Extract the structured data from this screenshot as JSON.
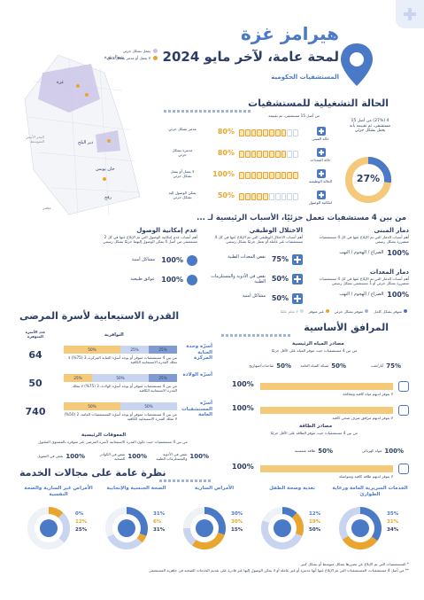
{
  "header": {
    "title": "هيرامز غزة",
    "subtitle": "لمحة عامة، لآخر مايو 2024",
    "facility_type": "المستشفيات الحكومية",
    "legend": [
      {
        "label": "يعمل بشكل جزئي",
        "color": "#c9c3e6"
      },
      {
        "label": "لا يعمل أو مدمر بشكل كامل",
        "color": "#e9a52e"
      }
    ]
  },
  "map": {
    "labels": [
      "غزة",
      "دير البلح",
      "خان يونس",
      "رفح",
      "شمال غزة",
      "مصر",
      "البحر الأبيض المتوسط"
    ]
  },
  "operational": {
    "title": "الحالة التشغيلية للمستشفيات",
    "intro": "من أصل 15 مستشفى، تم تقييمه",
    "ring_value": "27%",
    "ring_fraction": 0.27,
    "ring_caption": "4 (27%) من أصل 15 مستشفى، تم تقييمه بأنه يعمل بشكل جزئي",
    "rows": [
      {
        "label": "حالة المبنى",
        "pct": "80%",
        "fraction": 0.8,
        "desc": "مدمر بشكل جزئي"
      },
      {
        "label": "حالة المعدات",
        "pct": "80%",
        "fraction": 0.8,
        "desc": "مدمرة بشكل جزئي"
      },
      {
        "label": "الحالة الوظيفية",
        "pct": "100%",
        "fraction": 1.0,
        "desc": "لا يعمل أو يعمل بشكل جزئي"
      },
      {
        "label": "امكانية الوصول",
        "pct": "50%",
        "fraction": 0.5,
        "desc": "يمكن الوصول إليه بشكل جزئي"
      }
    ]
  },
  "reasons": {
    "title": "من بين 4 مستشفيات تعمل جزئيًا، الأسباب الرئيسية لـ ...",
    "cards": [
      {
        "title": "دمار المبنى",
        "desc": "أهم أسباب الدمار التي تم الإبلاغ عنها في كل 4 مستشفيات متضررة بشكل رسمي",
        "pct": "100%",
        "item": "الصراع / الهجوم / النهب"
      },
      {
        "title": "الاختلال الوظيفي",
        "desc": "أهم أسباب الاختلال الوظيفي التي تم الإبلاغ عنها في كل 4 مستشفيات غير عاملة أو تعمل جزئيًا بشكل رسمي",
        "items": [
          {
            "pct": "75%",
            "label": "نقص المعدات الطبية"
          },
          {
            "pct": "50%",
            "label": "نقص في الأدوية والمستلزمات الطبية"
          },
          {
            "pct": "50%",
            "label": "مشاكل أمنية"
          }
        ]
      },
      {
        "title": "عدم إمكانية الوصول",
        "desc": "أهم أسباب عدم إمكانية الوصول التي تم الإبلاغ عنها في كل 2 مستشفى من أصل 4 يمكن الوصول إليهما جزئيًا بشكل رسمي",
        "items": [
          {
            "pct": "100%",
            "label": "مشاكل أمنية"
          },
          {
            "pct": "100%",
            "label": "عوائق طبيعية"
          }
        ]
      },
      {
        "title": "دمار المعدات",
        "desc": "أهم أسباب الدمار التي تم الإبلاغ عنها في كل 4 مستشفيات متضررة بشكل جزئي أو 1 مستشفى بشكل رسمي",
        "pct": "100%",
        "item": "الصراع / الهجوم / النهب"
      }
    ]
  },
  "utilities": {
    "title": "المرافق الأساسية",
    "legend": [
      "متوفر بشكل كامل",
      "متوفر بشكل جزئي",
      "غير متوفر",
      "لا تعلم علمًا"
    ],
    "water_title": "مصادر المياه الرئيسية",
    "water_note": "من بين 4 مستشفيات حيث تتوفر المياه على الأقل جزئيًا",
    "water_items": [
      {
        "label": "آبار/ثقب",
        "pct": "75%"
      },
      {
        "label": "شبكة المياه العامة",
        "pct": "50%"
      },
      {
        "label": "شاحنات/صهاريج",
        "pct": "50%"
      }
    ],
    "toilet_pct": "100%",
    "toilet_note": "لا يتوفر لديهم مياه كافية ومعالجة",
    "sanitation_pct": "100%",
    "sanitation_note": "لا يتوفر لديهم مرافق صرف صحي كافية",
    "power_title": "مصادر الطاقة",
    "power_note": "من بين 4 مستشفيات حيث تتوفر الطاقة على الأقل جزئيًا",
    "power_items": [
      {
        "label": "مولد كهربائي",
        "pct": "100%"
      },
      {
        "label": "طاقة شمسية",
        "pct": "50%"
      }
    ],
    "power_pct": "100%",
    "power_no_note": "لا يتوفر لديهم طاقة كافية ومتواصلة"
  },
  "capacity": {
    "title": "القدرة الاستيعابية لأسرة المرضى",
    "col_available": "التوافرية",
    "col_count": "عدد الأسرة المتوفرة",
    "rows": [
      {
        "label": "أسرّة وحدة العناية المركزة",
        "count": "64",
        "segments": [
          {
            "v": "50%",
            "f": 0.5,
            "c": "#f5c97a"
          },
          {
            "v": "25%",
            "f": 0.25,
            "c": "#c9d5ef"
          },
          {
            "v": "25%",
            "f": 0.25,
            "c": "#7f9bd1"
          }
        ],
        "note": "من بين 4 مستشفيات متوفر أو يوجد أسرّة العناية المركزة، 3 (75%) لا تملك القدرة الاستيعابية الكافية"
      },
      {
        "label": "أسرّة الولادة",
        "count": "50",
        "segments": [
          {
            "v": "25%",
            "f": 0.25,
            "c": "#f5c97a"
          },
          {
            "v": "50%",
            "f": 0.5,
            "c": "#c9d5ef"
          },
          {
            "v": "25%",
            "f": 0.25,
            "c": "#7f9bd1"
          }
        ],
        "note": "من بين 4 مستشفيات متوفر أو يوجد أسرّة الولادة، 3 (75%) لا تملك القدرة الاستيعابية الكافية"
      },
      {
        "label": "أسرّة المستشفيات العامة",
        "count": "740",
        "segments": [
          {
            "v": "50%",
            "f": 0.5,
            "c": "#f5c97a"
          },
          {
            "v": "50%",
            "f": 0.5,
            "c": "#c9d5ef"
          }
        ],
        "note": "من بين 4 مستشفيات متوفر أو يوجد أسرّة المستشفيات العامة، 2 (50%) لا تملك القدرة الاستيعابية الكافية"
      }
    ],
    "impediments_title": "المعوقات الرئيسية",
    "impediments_note": "من بين 4 مستشفيات حيث تكون القدرة الاستيعابية لأسرة المرضى غير متوفرة بالمستوى المقبول",
    "impediments": [
      {
        "pct": "100%",
        "label": "نقص في الأدوية والمستلزمات الطبية"
      },
      {
        "pct": "100%",
        "label": "نقص في الكوادر الصحية"
      },
      {
        "pct": "100%",
        "label": "نقص في التمويل"
      }
    ]
  },
  "services": {
    "title": "نظرة عامة على مجالات الخدمة",
    "items": [
      {
        "title": "الخدمات السريرية العامة ورعاية الطوارئ",
        "values": [
          "35%",
          "31%",
          "34%"
        ],
        "fractions": [
          0.35,
          0.31,
          0.34
        ]
      },
      {
        "title": "تغذية وصحة الطفل",
        "values": [
          "12%",
          "19%",
          "50%"
        ],
        "fractions": [
          0.12,
          0.19,
          0.5
        ]
      },
      {
        "title": "الأمراض السارية",
        "values": [
          "30%",
          "30%",
          "15%"
        ],
        "fractions": [
          0.3,
          0.3,
          0.15
        ]
      },
      {
        "title": "الصحة الجنسية والإنجابية",
        "values": [
          "31%",
          "6%",
          "31%"
        ],
        "fractions": [
          0.31,
          0.06,
          0.31
        ]
      },
      {
        "title": "الأمراض غير السارية والصحة النفسية",
        "values": [
          "0%",
          "12%",
          "25%"
        ],
        "fractions": [
          0.0,
          0.12,
          0.25
        ]
      }
    ]
  },
  "footnotes": [
    "* المستشفيات التي تم الإبلاغ عن تضررها بشكل متوسط أو بشكل كبير",
    "** من أصل 4 مستشفيات، المستشفيات التي تم الإبلاغ عنها أنها مدمرة أو غير عاملة أو لا يمكن الوصول إليها غير قادرة على تقديم الخدمات الصحية في جاهزية المستشفى"
  ],
  "colors": {
    "navy": "#2c3e66",
    "blue": "#4a79c7",
    "gold": "#e9a52e",
    "lavender": "#c9c3e6"
  }
}
